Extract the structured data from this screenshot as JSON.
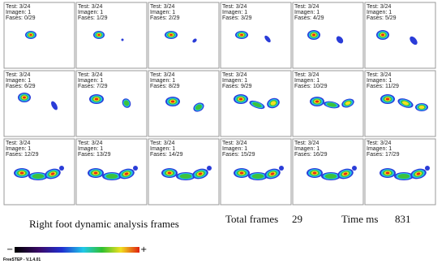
{
  "frames": [
    {
      "test": "Test: 3/24",
      "imagen": "Imagen: 1",
      "fases": "Fases: 0/29"
    },
    {
      "test": "Test: 3/24",
      "imagen": "Imagen: 1",
      "fases": "Fases: 1/29"
    },
    {
      "test": "Test: 3/24",
      "imagen": "Imagen: 1",
      "fases": "Fases: 2/29"
    },
    {
      "test": "Test: 3/24",
      "imagen": "Imagen: 1",
      "fases": "Fases: 3/29"
    },
    {
      "test": "Test: 3/24",
      "imagen": "Imagen: 1",
      "fases": "Fases: 4/29"
    },
    {
      "test": "Test: 3/24",
      "imagen": "Imagen: 1",
      "fases": "Fases: 5/29"
    },
    {
      "test": "Test: 3/24",
      "imagen": "Imagen: 1",
      "fases": "Fases: 6/29"
    },
    {
      "test": "Test: 3/24",
      "imagen": "Imagen: 1",
      "fases": "Fases: 7/29"
    },
    {
      "test": "Test: 3/24",
      "imagen": "Imagen: 1",
      "fases": "Fases: 8/29"
    },
    {
      "test": "Test: 3/24",
      "imagen": "Imagen: 1",
      "fases": "Fases: 9/29"
    },
    {
      "test": "Test: 3/24",
      "imagen": "Imagen: 1",
      "fases": "Fases: 10/29"
    },
    {
      "test": "Test: 3/24",
      "imagen": "Imagen: 1",
      "fases": "Fases: 11/29"
    },
    {
      "test": "Test: 3/24",
      "imagen": "Imagen: 1",
      "fases": "Fases: 12/29"
    },
    {
      "test": "Test: 3/24",
      "imagen": "Imagen: 1",
      "fases": "Fases: 13/29"
    },
    {
      "test": "Test: 3/24",
      "imagen": "Imagen: 1",
      "fases": "Fases: 14/29"
    },
    {
      "test": "Test: 3/24",
      "imagen": "Imagen: 1",
      "fases": "Fases: 15/29"
    },
    {
      "test": "Test: 3/24",
      "imagen": "Imagen: 1",
      "fases": "Fases: 16/29"
    },
    {
      "test": "Test: 3/24",
      "imagen": "Imagen: 1",
      "fases": "Fases: 17/29"
    }
  ],
  "caption": "Right foot dynamic analysis frames",
  "total_frames_label": "Total frames",
  "total_frames": 29,
  "time_label": "Time ms",
  "time": 831,
  "scale_min": "−",
  "scale_max": "+",
  "version": "FreeSTEP - V.1.4.01"
}
